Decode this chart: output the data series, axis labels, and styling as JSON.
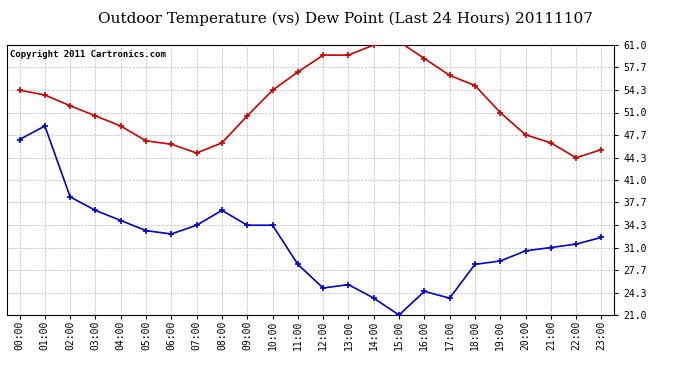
{
  "title": "Outdoor Temperature (vs) Dew Point (Last 24 Hours) 20111107",
  "copyright_text": "Copyright 2011 Cartronics.com",
  "x_labels": [
    "00:00",
    "01:00",
    "02:00",
    "03:00",
    "04:00",
    "05:00",
    "06:00",
    "07:00",
    "08:00",
    "09:00",
    "10:00",
    "11:00",
    "12:00",
    "13:00",
    "14:00",
    "15:00",
    "16:00",
    "17:00",
    "18:00",
    "19:00",
    "20:00",
    "21:00",
    "22:00",
    "23:00"
  ],
  "temp_data": [
    54.3,
    53.6,
    52.0,
    50.5,
    49.0,
    46.8,
    46.3,
    45.0,
    46.5,
    50.5,
    54.3,
    57.0,
    59.5,
    59.5,
    61.0,
    61.5,
    59.0,
    56.5,
    55.0,
    51.0,
    47.7,
    46.5,
    44.3,
    45.5
  ],
  "dew_data": [
    47.0,
    49.0,
    38.5,
    36.5,
    35.0,
    33.5,
    33.0,
    34.3,
    36.5,
    34.3,
    34.3,
    28.5,
    25.0,
    25.5,
    23.5,
    21.0,
    24.5,
    23.5,
    28.5,
    29.0,
    30.5,
    31.0,
    31.5,
    32.5
  ],
  "temp_color": "#cc0000",
  "dew_color": "#0000cc",
  "bg_color": "#ffffff",
  "plot_bg_color": "#ffffff",
  "grid_color": "#bbbbbb",
  "ylim": [
    21.0,
    61.0
  ],
  "yticks": [
    21.0,
    24.3,
    27.7,
    31.0,
    34.3,
    37.7,
    41.0,
    44.3,
    47.7,
    51.0,
    54.3,
    57.7,
    61.0
  ],
  "title_fontsize": 11,
  "axis_label_fontsize": 7,
  "copyright_fontsize": 6.5
}
